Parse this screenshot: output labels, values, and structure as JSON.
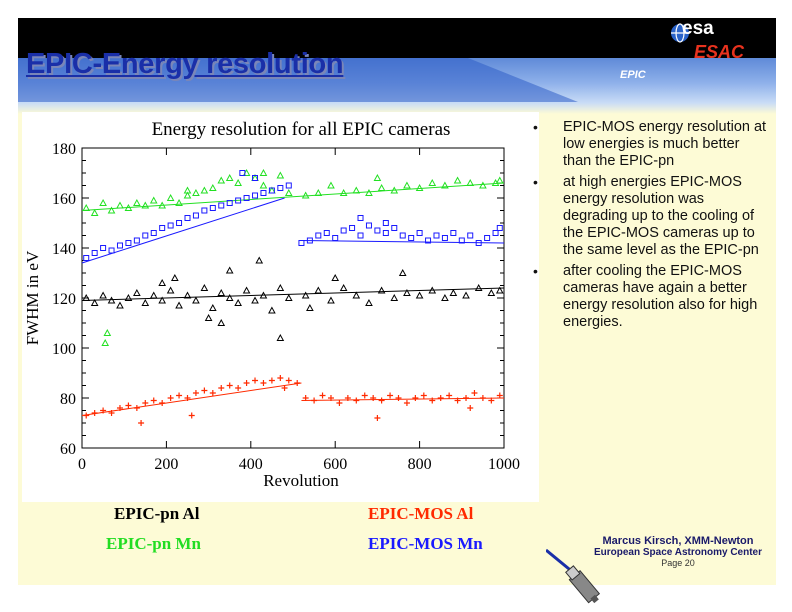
{
  "header": {
    "title": "EPIC-Energy resolution",
    "logo_esa": "esa",
    "logo_esac": "ESAC",
    "logo_epic": "EPIC"
  },
  "bullets": [
    "EPIC-MOS energy resolution at low energies is much better than the EPIC-pn",
    "at high energies EPIC-MOS energy resolution was degrading up to the cooling of the EPIC-MOS cameras up to the same level as the EPIC-pn",
    "after cooling the EPIC-MOS cameras have again a better energy resolution also for high energies."
  ],
  "legend": {
    "pn_al": "EPIC-pn Al",
    "pn_mn": "EPIC-pn Mn",
    "mos_al": "EPIC-MOS Al",
    "mos_mn": "EPIC-MOS Mn"
  },
  "footer": {
    "author": "Marcus Kirsch, XMM-Newton",
    "org": "European Space Astronomy Center",
    "page": "Page 20"
  },
  "colors": {
    "title": "#1a2fa8",
    "pn_al": "#000000",
    "pn_mn": "#22e022",
    "mos_al": "#ff2a00",
    "mos_mn": "#1a1aff"
  },
  "chart_data": {
    "type": "scatter",
    "title": "Energy resolution for all EPIC cameras",
    "xlabel": "Revolution",
    "ylabel": "FWHM in eV",
    "xlim": [
      0,
      1000
    ],
    "ylim": [
      60,
      180
    ],
    "xticks": [
      0,
      200,
      400,
      600,
      800,
      1000
    ],
    "yticks": [
      60,
      80,
      100,
      120,
      140,
      160,
      180
    ],
    "series": [
      {
        "name": "EPIC-pn Mn",
        "marker": "triangle",
        "color": "#22e022",
        "trend": [
          [
            0,
            155
          ],
          [
            1000,
            166
          ]
        ],
        "values": [
          [
            10,
            156
          ],
          [
            30,
            154
          ],
          [
            50,
            158
          ],
          [
            70,
            155
          ],
          [
            90,
            157
          ],
          [
            110,
            156
          ],
          [
            130,
            158
          ],
          [
            150,
            157
          ],
          [
            170,
            159
          ],
          [
            190,
            157
          ],
          [
            210,
            160
          ],
          [
            230,
            158
          ],
          [
            250,
            161
          ],
          [
            270,
            162
          ],
          [
            290,
            163
          ],
          [
            310,
            164
          ],
          [
            330,
            167
          ],
          [
            350,
            168
          ],
          [
            370,
            166
          ],
          [
            390,
            170
          ],
          [
            410,
            168
          ],
          [
            430,
            165
          ],
          [
            450,
            163
          ],
          [
            470,
            169
          ],
          [
            490,
            162
          ],
          [
            530,
            161
          ],
          [
            560,
            162
          ],
          [
            590,
            165
          ],
          [
            620,
            162
          ],
          [
            650,
            163
          ],
          [
            680,
            162
          ],
          [
            710,
            164
          ],
          [
            740,
            163
          ],
          [
            770,
            165
          ],
          [
            800,
            164
          ],
          [
            830,
            166
          ],
          [
            860,
            165
          ],
          [
            890,
            167
          ],
          [
            920,
            166
          ],
          [
            950,
            165
          ],
          [
            980,
            166
          ],
          [
            990,
            167
          ],
          [
            60,
            106
          ],
          [
            55,
            102
          ],
          [
            250,
            163
          ],
          [
            430,
            170
          ],
          [
            700,
            168
          ]
        ]
      },
      {
        "name": "EPIC-MOS Mn",
        "marker": "square",
        "color": "#1a1aff",
        "trend": [
          [
            0,
            134
          ],
          [
            480,
            160
          ]
        ],
        "trend2": [
          [
            520,
            143
          ],
          [
            1000,
            142
          ]
        ],
        "values": [
          [
            10,
            136
          ],
          [
            30,
            138
          ],
          [
            50,
            140
          ],
          [
            70,
            139
          ],
          [
            90,
            141
          ],
          [
            110,
            142
          ],
          [
            130,
            143
          ],
          [
            150,
            145
          ],
          [
            170,
            146
          ],
          [
            190,
            148
          ],
          [
            210,
            149
          ],
          [
            230,
            150
          ],
          [
            250,
            152
          ],
          [
            270,
            153
          ],
          [
            290,
            155
          ],
          [
            310,
            156
          ],
          [
            330,
            157
          ],
          [
            350,
            158
          ],
          [
            370,
            159
          ],
          [
            390,
            160
          ],
          [
            410,
            161
          ],
          [
            430,
            162
          ],
          [
            450,
            163
          ],
          [
            470,
            164
          ],
          [
            490,
            165
          ],
          [
            520,
            142
          ],
          [
            540,
            143
          ],
          [
            560,
            145
          ],
          [
            580,
            146
          ],
          [
            600,
            144
          ],
          [
            620,
            147
          ],
          [
            640,
            148
          ],
          [
            660,
            145
          ],
          [
            680,
            149
          ],
          [
            700,
            147
          ],
          [
            720,
            146
          ],
          [
            740,
            148
          ],
          [
            760,
            145
          ],
          [
            780,
            144
          ],
          [
            800,
            146
          ],
          [
            820,
            143
          ],
          [
            840,
            145
          ],
          [
            860,
            144
          ],
          [
            880,
            146
          ],
          [
            900,
            143
          ],
          [
            920,
            145
          ],
          [
            940,
            142
          ],
          [
            960,
            144
          ],
          [
            980,
            146
          ],
          [
            990,
            148
          ],
          [
            380,
            170
          ],
          [
            410,
            168
          ],
          [
            660,
            152
          ],
          [
            720,
            150
          ]
        ]
      },
      {
        "name": "EPIC-pn Al",
        "marker": "triangle",
        "color": "#000000",
        "trend": [
          [
            0,
            119
          ],
          [
            1000,
            124
          ]
        ],
        "values": [
          [
            10,
            120
          ],
          [
            30,
            118
          ],
          [
            50,
            121
          ],
          [
            70,
            119
          ],
          [
            90,
            117
          ],
          [
            110,
            120
          ],
          [
            130,
            122
          ],
          [
            150,
            118
          ],
          [
            170,
            121
          ],
          [
            190,
            119
          ],
          [
            210,
            123
          ],
          [
            230,
            117
          ],
          [
            250,
            121
          ],
          [
            270,
            119
          ],
          [
            290,
            124
          ],
          [
            310,
            116
          ],
          [
            330,
            122
          ],
          [
            350,
            120
          ],
          [
            370,
            118
          ],
          [
            390,
            123
          ],
          [
            410,
            119
          ],
          [
            430,
            121
          ],
          [
            450,
            115
          ],
          [
            470,
            124
          ],
          [
            490,
            120
          ],
          [
            530,
            121
          ],
          [
            560,
            123
          ],
          [
            590,
            119
          ],
          [
            620,
            124
          ],
          [
            650,
            121
          ],
          [
            680,
            118
          ],
          [
            710,
            123
          ],
          [
            740,
            120
          ],
          [
            770,
            122
          ],
          [
            800,
            121
          ],
          [
            830,
            123
          ],
          [
            860,
            120
          ],
          [
            880,
            122
          ],
          [
            910,
            121
          ],
          [
            940,
            124
          ],
          [
            970,
            122
          ],
          [
            990,
            123
          ],
          [
            220,
            128
          ],
          [
            300,
            112
          ],
          [
            350,
            131
          ],
          [
            470,
            104
          ],
          [
            420,
            135
          ],
          [
            600,
            128
          ],
          [
            760,
            130
          ],
          [
            190,
            126
          ],
          [
            330,
            110
          ],
          [
            540,
            116
          ]
        ]
      },
      {
        "name": "EPIC-MOS Al",
        "marker": "plus",
        "color": "#ff2a00",
        "trend": [
          [
            0,
            73
          ],
          [
            520,
            86
          ]
        ],
        "trend2": [
          [
            520,
            79
          ],
          [
            1000,
            80
          ]
        ],
        "values": [
          [
            10,
            73
          ],
          [
            30,
            74
          ],
          [
            50,
            75
          ],
          [
            70,
            74
          ],
          [
            90,
            76
          ],
          [
            110,
            77
          ],
          [
            130,
            76
          ],
          [
            150,
            78
          ],
          [
            170,
            79
          ],
          [
            190,
            78
          ],
          [
            210,
            80
          ],
          [
            230,
            81
          ],
          [
            250,
            80
          ],
          [
            270,
            82
          ],
          [
            290,
            83
          ],
          [
            310,
            82
          ],
          [
            330,
            84
          ],
          [
            350,
            85
          ],
          [
            370,
            84
          ],
          [
            390,
            86
          ],
          [
            410,
            87
          ],
          [
            430,
            86
          ],
          [
            450,
            87
          ],
          [
            470,
            88
          ],
          [
            490,
            87
          ],
          [
            510,
            86
          ],
          [
            530,
            80
          ],
          [
            550,
            79
          ],
          [
            570,
            81
          ],
          [
            590,
            80
          ],
          [
            610,
            78
          ],
          [
            630,
            80
          ],
          [
            650,
            79
          ],
          [
            670,
            81
          ],
          [
            690,
            80
          ],
          [
            710,
            79
          ],
          [
            730,
            81
          ],
          [
            750,
            80
          ],
          [
            770,
            78
          ],
          [
            790,
            80
          ],
          [
            810,
            81
          ],
          [
            830,
            79
          ],
          [
            850,
            80
          ],
          [
            870,
            81
          ],
          [
            890,
            79
          ],
          [
            910,
            80
          ],
          [
            930,
            82
          ],
          [
            950,
            80
          ],
          [
            970,
            79
          ],
          [
            990,
            81
          ],
          [
            140,
            70
          ],
          [
            260,
            73
          ],
          [
            480,
            84
          ],
          [
            700,
            72
          ],
          [
            920,
            76
          ]
        ]
      }
    ]
  }
}
